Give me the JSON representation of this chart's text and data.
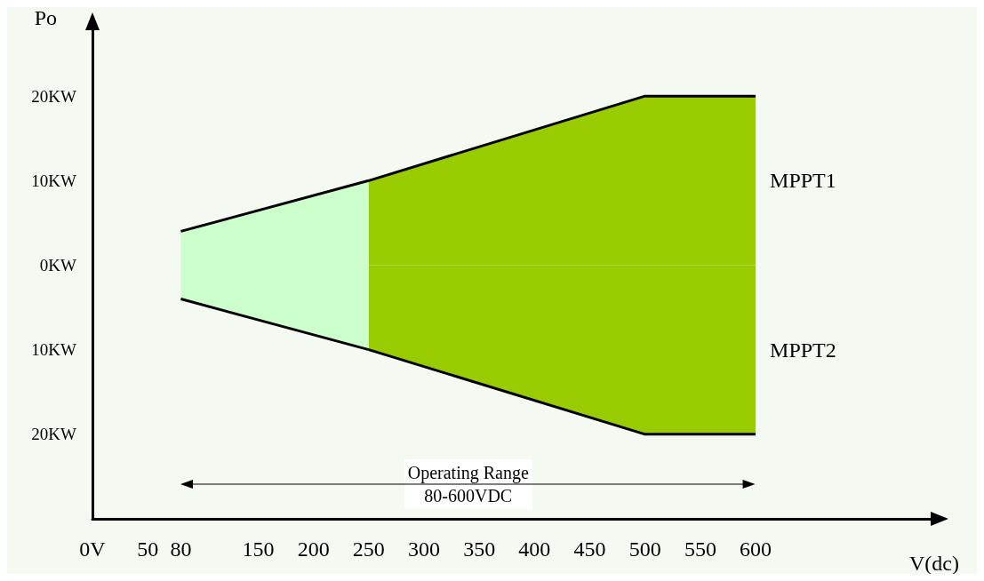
{
  "chart_data": {
    "type": "area",
    "xlabel": "V(dc)",
    "ylabel": "Po",
    "xlim": [
      0,
      760
    ],
    "xticks": [
      {
        "value": 0,
        "label": "0V"
      },
      50,
      80,
      150,
      200,
      250,
      300,
      350,
      400,
      450,
      500,
      550,
      600
    ],
    "ylim": [
      -30,
      28
    ],
    "yticks": [
      {
        "value": -20,
        "label": "20KW"
      },
      {
        "value": -10,
        "label": "10KW"
      },
      {
        "value": 0,
        "label": "0KW"
      },
      {
        "value": 10,
        "label": "10KW"
      },
      {
        "value": 20,
        "label": "20KW"
      }
    ],
    "grid": false,
    "series": [
      {
        "color": "#ccffcc",
        "x": [
          80,
          250
        ],
        "values": [
          4,
          10
        ]
      },
      {
        "name": "MPPT1",
        "color": "#99cc00",
        "x": [
          250,
          500,
          600
        ],
        "values": [
          10,
          20,
          20
        ]
      },
      {
        "color": "#ccffcc",
        "x": [
          80,
          250
        ],
        "values": [
          -4,
          -10
        ]
      },
      {
        "name": "MPPT2",
        "color": "#99cc00",
        "x": [
          250,
          500,
          600
        ],
        "values": [
          -10,
          -20,
          -20
        ]
      }
    ],
    "annotations": [
      "Operating Range\n80-600VDC"
    ]
  }
}
